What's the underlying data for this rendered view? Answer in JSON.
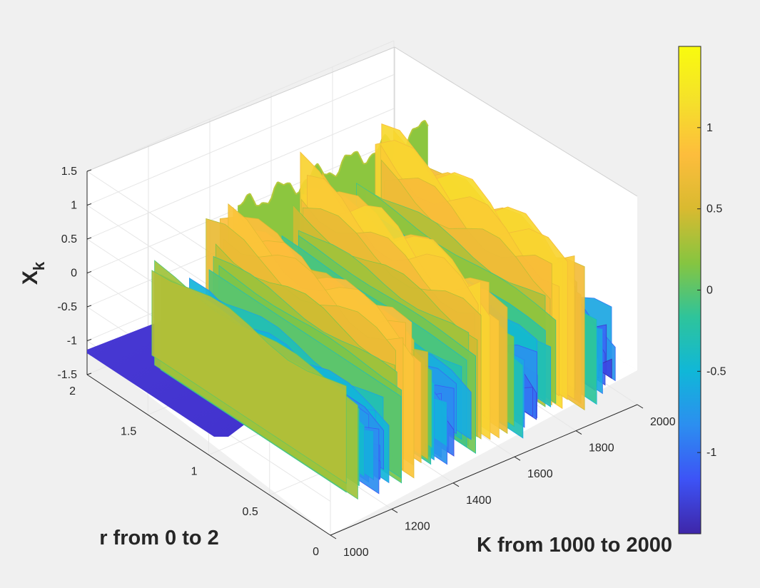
{
  "chart_data": {
    "type": "surface",
    "title": "",
    "xlabel": "K from 1000 to 2000",
    "ylabel": "r from 0 to 2",
    "zlabel_base": "X",
    "zlabel_sub": "k",
    "xlim": [
      1000,
      2000
    ],
    "ylim": [
      0,
      2
    ],
    "zlim": [
      -1.5,
      1.5
    ],
    "x_ticks": [
      "1000",
      "1200",
      "1400",
      "1600",
      "1800",
      "2000"
    ],
    "y_ticks": [
      "0",
      "0.5",
      "1",
      "1.5",
      "2"
    ],
    "z_ticks": [
      "-1.5",
      "-1",
      "-0.5",
      "0",
      "0.5",
      "1",
      "1.5"
    ],
    "colormap": "parula",
    "colorbar": {
      "range": [
        -1.5,
        1.5
      ],
      "ticks": [
        "-1",
        "-0.5",
        "0",
        "0.5",
        "1"
      ],
      "colors": [
        "#3e26a8",
        "#3d53f6",
        "#2c8ef0",
        "#10b7d8",
        "#2ec49b",
        "#86c540",
        "#d9ba30",
        "#fdbd3c",
        "#f5e12a",
        "#f9fb0e"
      ]
    },
    "grid": true,
    "description_regions": [
      {
        "r_range": [
          0,
          1.6
        ],
        "K_range": [
          1000,
          1380
        ],
        "behavior": "flat surface near z = -1.3"
      },
      {
        "r_range": [
          1.6,
          2
        ],
        "K_range": [
          1000,
          2000
        ],
        "behavior": "oscillating ridge around z = 0.5 to 0.9"
      },
      {
        "r_range": [
          0.4,
          2
        ],
        "K_range": [
          1100,
          2000
        ],
        "behavior": "chaotic sheets spanning z = -1.4 to 1.4"
      }
    ]
  }
}
